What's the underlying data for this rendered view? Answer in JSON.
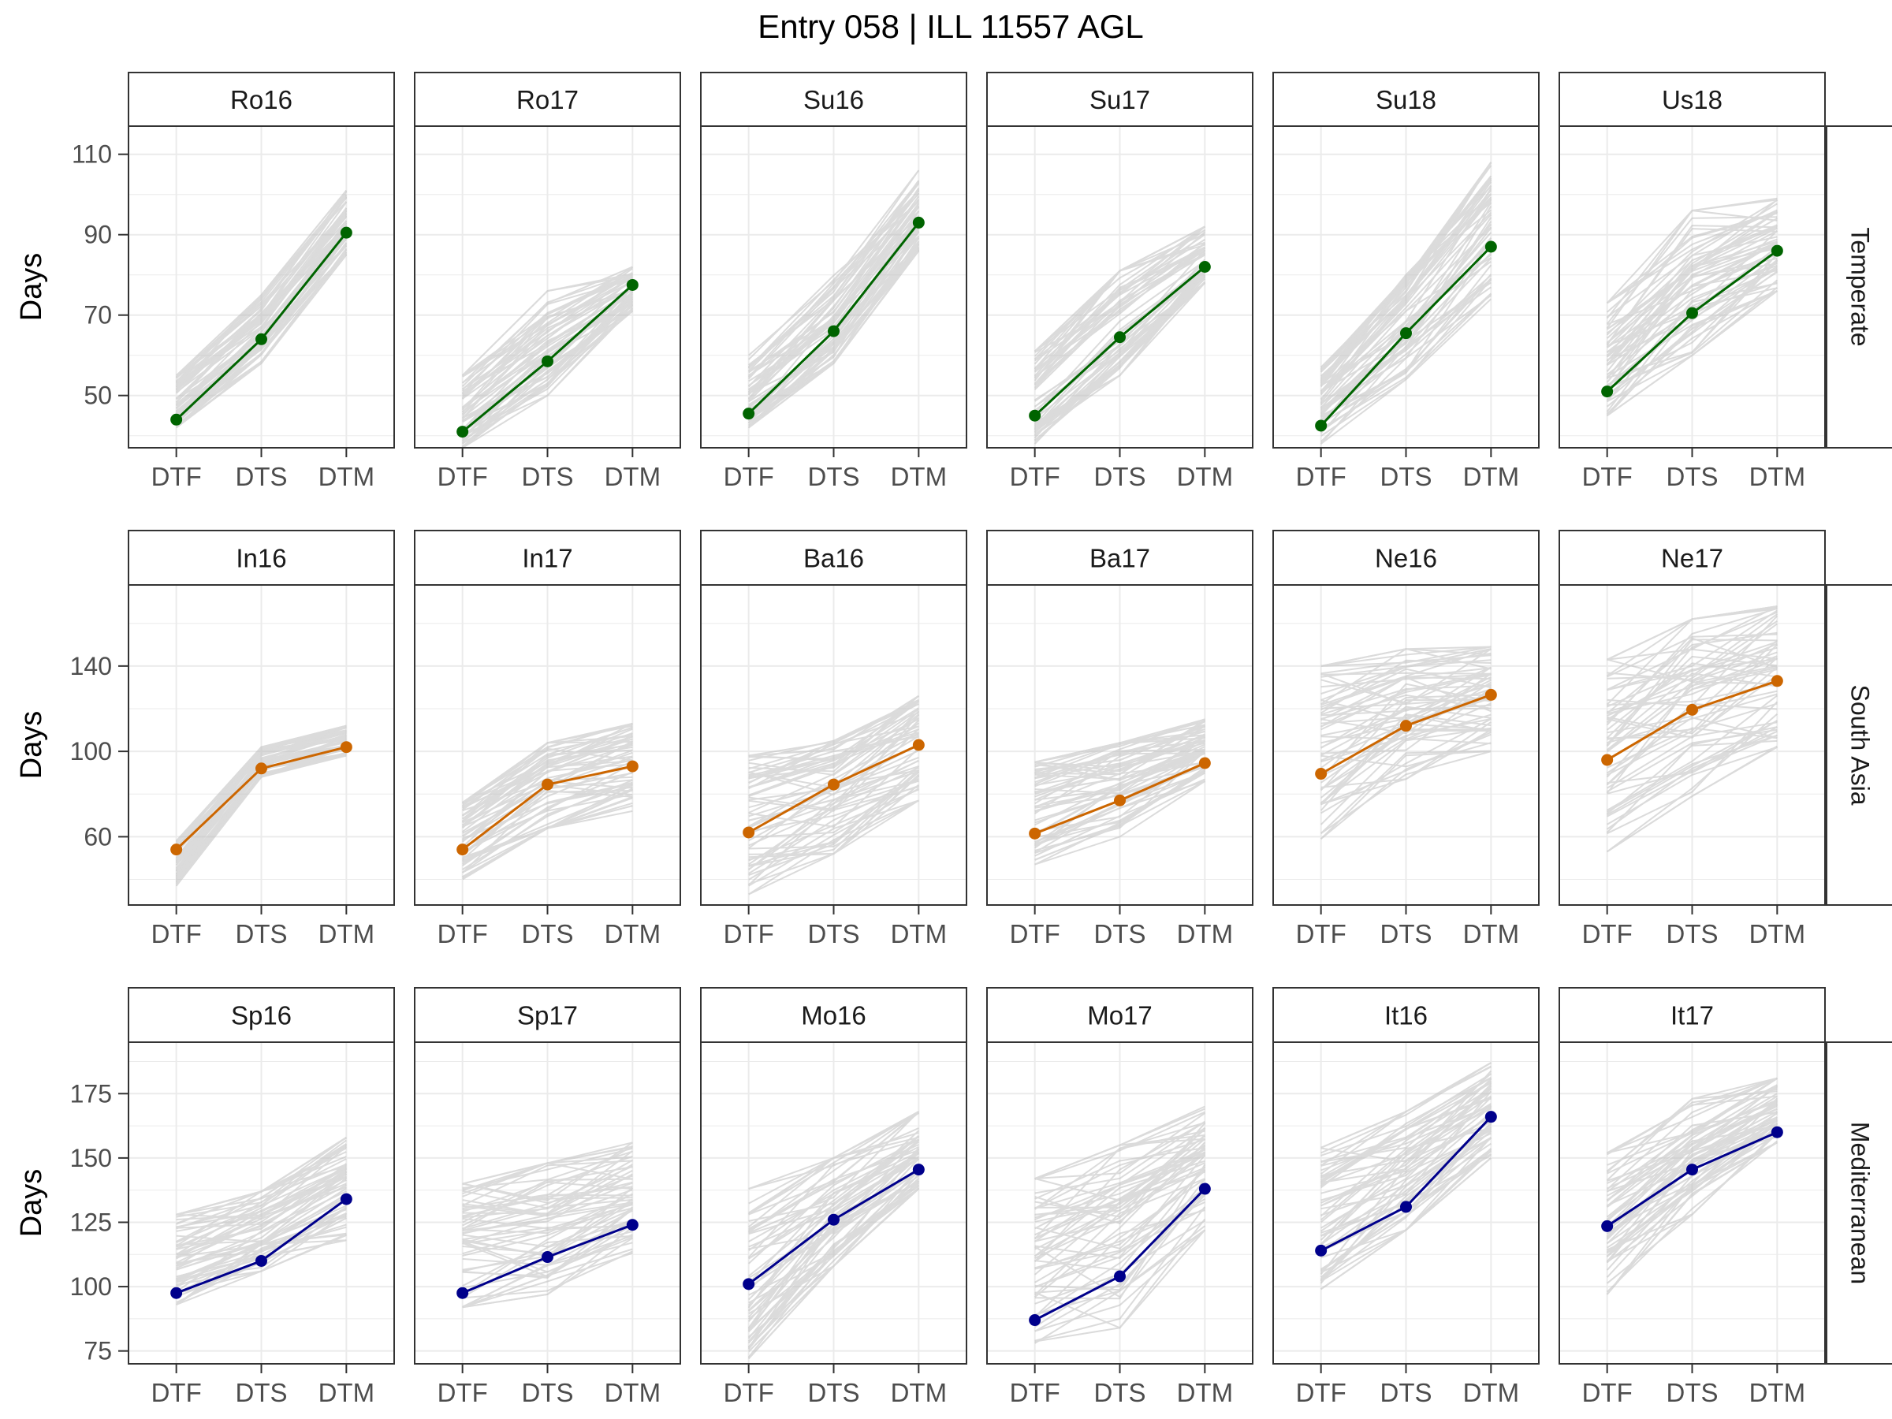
{
  "chart_data": {
    "type": "line",
    "title": "Entry 058 | ILL 11557 AGL",
    "ylabel": "Days",
    "categories": [
      "DTF",
      "DTS",
      "DTM"
    ],
    "colors": {
      "background_lines": "#bebebe",
      "grid": "#ebebeb",
      "strip_fill": "#ffffff",
      "panel_border": "#333333"
    },
    "rows": [
      {
        "label": "Temperate",
        "color": "#006400",
        "ylim": [
          37,
          117
        ],
        "yticks": [
          50,
          70,
          90,
          110
        ],
        "bands": {
          "DTF": [
            39,
            58
          ],
          "DTS": [
            55,
            80
          ],
          "DTM": [
            72,
            108
          ]
        },
        "panels": [
          {
            "label": "Ro16",
            "values": [
              44,
              64,
              90.5
            ],
            "ranges": [
              [
                42,
                55
              ],
              [
                58,
                75
              ],
              [
                85,
                101
              ]
            ]
          },
          {
            "label": "Ro17",
            "values": [
              41,
              58.5,
              77.5
            ],
            "ranges": [
              [
                37,
                55
              ],
              [
                50,
                76
              ],
              [
                71,
                82
              ]
            ]
          },
          {
            "label": "Su16",
            "values": [
              45.5,
              66,
              93
            ],
            "ranges": [
              [
                42,
                60
              ],
              [
                58,
                80
              ],
              [
                86,
                106
              ]
            ]
          },
          {
            "label": "Su17",
            "values": [
              45,
              64.5,
              82
            ],
            "ranges": [
              [
                38,
                61
              ],
              [
                55,
                81
              ],
              [
                78,
                92
              ]
            ]
          },
          {
            "label": "Su18",
            "values": [
              42.5,
              65.5,
              87
            ],
            "ranges": [
              [
                38,
                57
              ],
              [
                54,
                80
              ],
              [
                74,
                108
              ]
            ]
          },
          {
            "label": "Us18",
            "values": [
              51,
              70.5,
              86
            ],
            "ranges": [
              [
                45,
                73
              ],
              [
                60,
                96
              ],
              [
                76,
                99
              ]
            ]
          }
        ]
      },
      {
        "label": "South Asia",
        "color": "#cc6600",
        "ylim": [
          28,
          178
        ],
        "yticks": [
          60,
          100,
          140
        ],
        "bands": {
          "DTF": [
            30,
            145
          ],
          "DTS": [
            55,
            165
          ],
          "DTM": [
            70,
            170
          ]
        },
        "panels": [
          {
            "label": "In16",
            "values": [
              54,
              92,
              102
            ],
            "ranges": [
              [
                37,
                58
              ],
              [
                88,
                102
              ],
              [
                98,
                112
              ]
            ]
          },
          {
            "label": "In17",
            "values": [
              54,
              84.5,
              93
            ],
            "ranges": [
              [
                40,
                76
              ],
              [
                64,
                104
              ],
              [
                72,
                113
              ]
            ]
          },
          {
            "label": "Ba16",
            "values": [
              62,
              84.5,
              103
            ],
            "ranges": [
              [
                33,
                98
              ],
              [
                52,
                105
              ],
              [
                77,
                126
              ]
            ]
          },
          {
            "label": "Ba17",
            "values": [
              61.5,
              77,
              94.5
            ],
            "ranges": [
              [
                47,
                95
              ],
              [
                60,
                104
              ],
              [
                86,
                115
              ]
            ]
          },
          {
            "label": "Ne16",
            "values": [
              89.5,
              112,
              126.5
            ],
            "ranges": [
              [
                59,
                140
              ],
              [
                87,
                148
              ],
              [
                100,
                149
              ]
            ]
          },
          {
            "label": "Ne17",
            "values": [
              96,
              119.5,
              133
            ],
            "ranges": [
              [
                53,
                143
              ],
              [
                79,
                162
              ],
              [
                102,
                168
              ]
            ]
          }
        ]
      },
      {
        "label": "Mediterranean",
        "color": "#00008b",
        "ylim": [
          70,
          195
        ],
        "yticks": [
          75,
          100,
          125,
          150,
          175
        ],
        "bands": {
          "DTF": [
            72,
            155
          ],
          "DTS": [
            84,
            178
          ],
          "DTM": [
            110,
            188
          ]
        },
        "panels": [
          {
            "label": "Sp16",
            "values": [
              97.5,
              110,
              134
            ],
            "ranges": [
              [
                93,
                128
              ],
              [
                106,
                137
              ],
              [
                118,
                158
              ]
            ]
          },
          {
            "label": "Sp17",
            "values": [
              97.5,
              111.5,
              124
            ],
            "ranges": [
              [
                92,
                140
              ],
              [
                97,
                148
              ],
              [
                113,
                156
              ]
            ]
          },
          {
            "label": "Mo16",
            "values": [
              101,
              126,
              145.5
            ],
            "ranges": [
              [
                72,
                138
              ],
              [
                108,
                150
              ],
              [
                138,
                168
              ]
            ]
          },
          {
            "label": "Mo17",
            "values": [
              87,
              104,
              138
            ],
            "ranges": [
              [
                78,
                142
              ],
              [
                84,
                155
              ],
              [
                122,
                170
              ]
            ]
          },
          {
            "label": "It16",
            "values": [
              114,
              131,
              166
            ],
            "ranges": [
              [
                99,
                154
              ],
              [
                122,
                168
              ],
              [
                150,
                187
              ]
            ]
          },
          {
            "label": "It17",
            "values": [
              123.5,
              145.5,
              160
            ],
            "ranges": [
              [
                97,
                152
              ],
              [
                128,
                173
              ],
              [
                156,
                181
              ]
            ]
          }
        ]
      }
    ]
  }
}
